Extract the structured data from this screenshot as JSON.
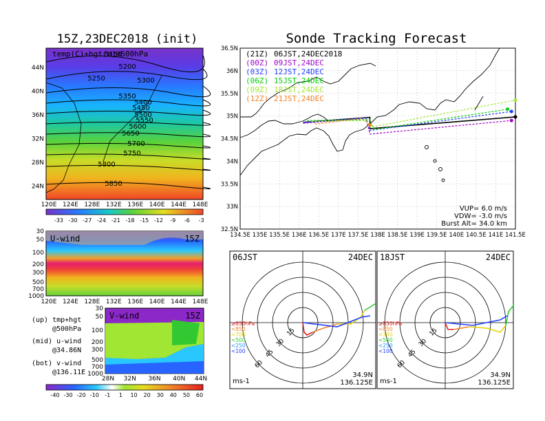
{
  "init_title": "15Z,23DEC2018 (init)",
  "main_title": "Sonde Tracking Forecast",
  "colors": {
    "t21": "#000000",
    "t00": "#a000c8",
    "t03": "#1e3cff",
    "t06": "#00d200",
    "t09": "#a0e632",
    "t12": "#f08228"
  },
  "upper_map": {
    "label": "temp(C)+hgt(m)@500hPa",
    "xticks": [
      "120E",
      "124E",
      "128E",
      "132E",
      "136E",
      "140E",
      "144E",
      "148E"
    ],
    "yticks": [
      "44N",
      "40N",
      "36N",
      "32N",
      "28N",
      "24N"
    ],
    "contours": [
      "5150",
      "5200",
      "5250",
      "5300",
      "5350",
      "5400",
      "5450",
      "5500",
      "5550",
      "5600",
      "5650",
      "5700",
      "5750",
      "5800",
      "5850"
    ],
    "colorbar": [
      "-33",
      "-30",
      "-27",
      "-24",
      "-21",
      "-18",
      "-15",
      "-12",
      "-9",
      "-6",
      "-3"
    ]
  },
  "u_panel": {
    "label": "U-wind",
    "time": "15Z",
    "yticks": [
      "30",
      "50",
      "100",
      "200",
      "300",
      "500",
      "700",
      "1000"
    ],
    "xticks": [
      "120E",
      "124E",
      "128E",
      "132E",
      "136E",
      "140E",
      "144E",
      "148E"
    ]
  },
  "v_panel": {
    "label": "V-wind",
    "time": "15Z",
    "yticks": [
      "30",
      "50",
      "100",
      "200",
      "300",
      "500",
      "700",
      "1000"
    ],
    "xticks": [
      "28N",
      "32N",
      "36N",
      "40N",
      "44N"
    ],
    "colorbar": [
      "-40",
      "-30",
      "-20",
      "-10",
      "-1",
      "1",
      "10",
      "20",
      "30",
      "40",
      "50",
      "60"
    ]
  },
  "legend_notes": [
    "(up) tmp+hgt",
    "@500hPa",
    "(mid) u-wind",
    "@34.86N",
    "(bot) v-wind",
    "@136.11E"
  ],
  "track_map": {
    "legend": [
      {
        "time": "(21Z)",
        "text": "06JST,24DEC2018",
        "key": "t21"
      },
      {
        "time": "(00Z)",
        "text": "09JST,24DEC",
        "key": "t00"
      },
      {
        "time": "(03Z)",
        "text": "12JST,24DEC",
        "key": "t03"
      },
      {
        "time": "(06Z)",
        "text": "15JST,24DEC",
        "key": "t06"
      },
      {
        "time": "(09Z)",
        "text": "18JST,24DEC",
        "key": "t09"
      },
      {
        "time": "(12Z)",
        "text": "21JST,24DEC",
        "key": "t12"
      }
    ],
    "yticks": [
      "36.5N",
      "36N",
      "35.5N",
      "35N",
      "34.5N",
      "34N",
      "33.5N",
      "33N",
      "32.5N"
    ],
    "xticks": [
      "134.5E",
      "135E",
      "135.5E",
      "136E",
      "136.5E",
      "137E",
      "137.5E",
      "138E",
      "138.5E",
      "139E",
      "139.5E",
      "140E",
      "140.5E",
      "141E",
      "141.5E"
    ],
    "info": [
      "VUP= 6.0 m/s",
      "VDW= -3.0 m/s",
      "Burst Alt= 34.0 km"
    ]
  },
  "hodo_left": {
    "time": "06JST",
    "date": "24DEC",
    "lat": "34.9N",
    "lon": "136.125E",
    "unit": "ms-1",
    "rings": [
      "15",
      "30",
      "45",
      "60"
    ],
    "levels": [
      {
        "t": "≥850hPa",
        "c": "#e02020"
      },
      {
        "t": "<850",
        "c": "#f08228"
      },
      {
        "t": "<700",
        "c": "#e6d200"
      },
      {
        "t": "<500",
        "c": "#32c832"
      },
      {
        "t": "<250",
        "c": "#1e90ff"
      },
      {
        "t": "<100",
        "c": "#1e3cff"
      }
    ]
  },
  "hodo_right": {
    "time": "18JST",
    "date": "24DEC",
    "lat": "34.9N",
    "lon": "136.125E",
    "unit": "ms-1",
    "rings": [
      "15",
      "30",
      "45",
      "60"
    ],
    "levels": [
      {
        "t": "≥850hPa",
        "c": "#e02020"
      },
      {
        "t": "<850",
        "c": "#f08228"
      },
      {
        "t": "<700",
        "c": "#e6d200"
      },
      {
        "t": "<500",
        "c": "#32c832"
      },
      {
        "t": "<250",
        "c": "#1e90ff"
      },
      {
        "t": "<100",
        "c": "#1e3cff"
      }
    ]
  },
  "chart_data": {
    "type": "line",
    "title": "Sonde Tracking Forecast",
    "xlim": [
      134.5,
      141.5
    ],
    "ylim": [
      32.5,
      36.5
    ],
    "series": [
      {
        "name": "(21Z)",
        "x": [
          136.1,
          137.8,
          137.8,
          141.5
        ],
        "y": [
          34.86,
          34.97,
          34.72,
          34.98
        ]
      },
      {
        "name": "(00Z)",
        "x": [
          136.1,
          137.7,
          137.8,
          141.4
        ],
        "y": [
          34.84,
          34.95,
          34.6,
          34.9
        ]
      },
      {
        "name": "(03Z)",
        "x": [
          136.1,
          137.7,
          137.8,
          141.4
        ],
        "y": [
          34.86,
          34.96,
          34.68,
          35.1
        ]
      },
      {
        "name": "(06Z)",
        "x": [
          136.2,
          137.8,
          137.9,
          141.3
        ],
        "y": [
          34.9,
          34.92,
          34.7,
          35.15
        ]
      },
      {
        "name": "(09Z)",
        "x": [
          136.3,
          137.7,
          137.8,
          141.5
        ],
        "y": [
          34.88,
          34.9,
          34.75,
          35.35
        ]
      },
      {
        "name": "(12Z)",
        "x": [
          136.4,
          137.6,
          137.8
        ],
        "y": [
          34.82,
          34.95,
          34.8
        ]
      }
    ]
  }
}
